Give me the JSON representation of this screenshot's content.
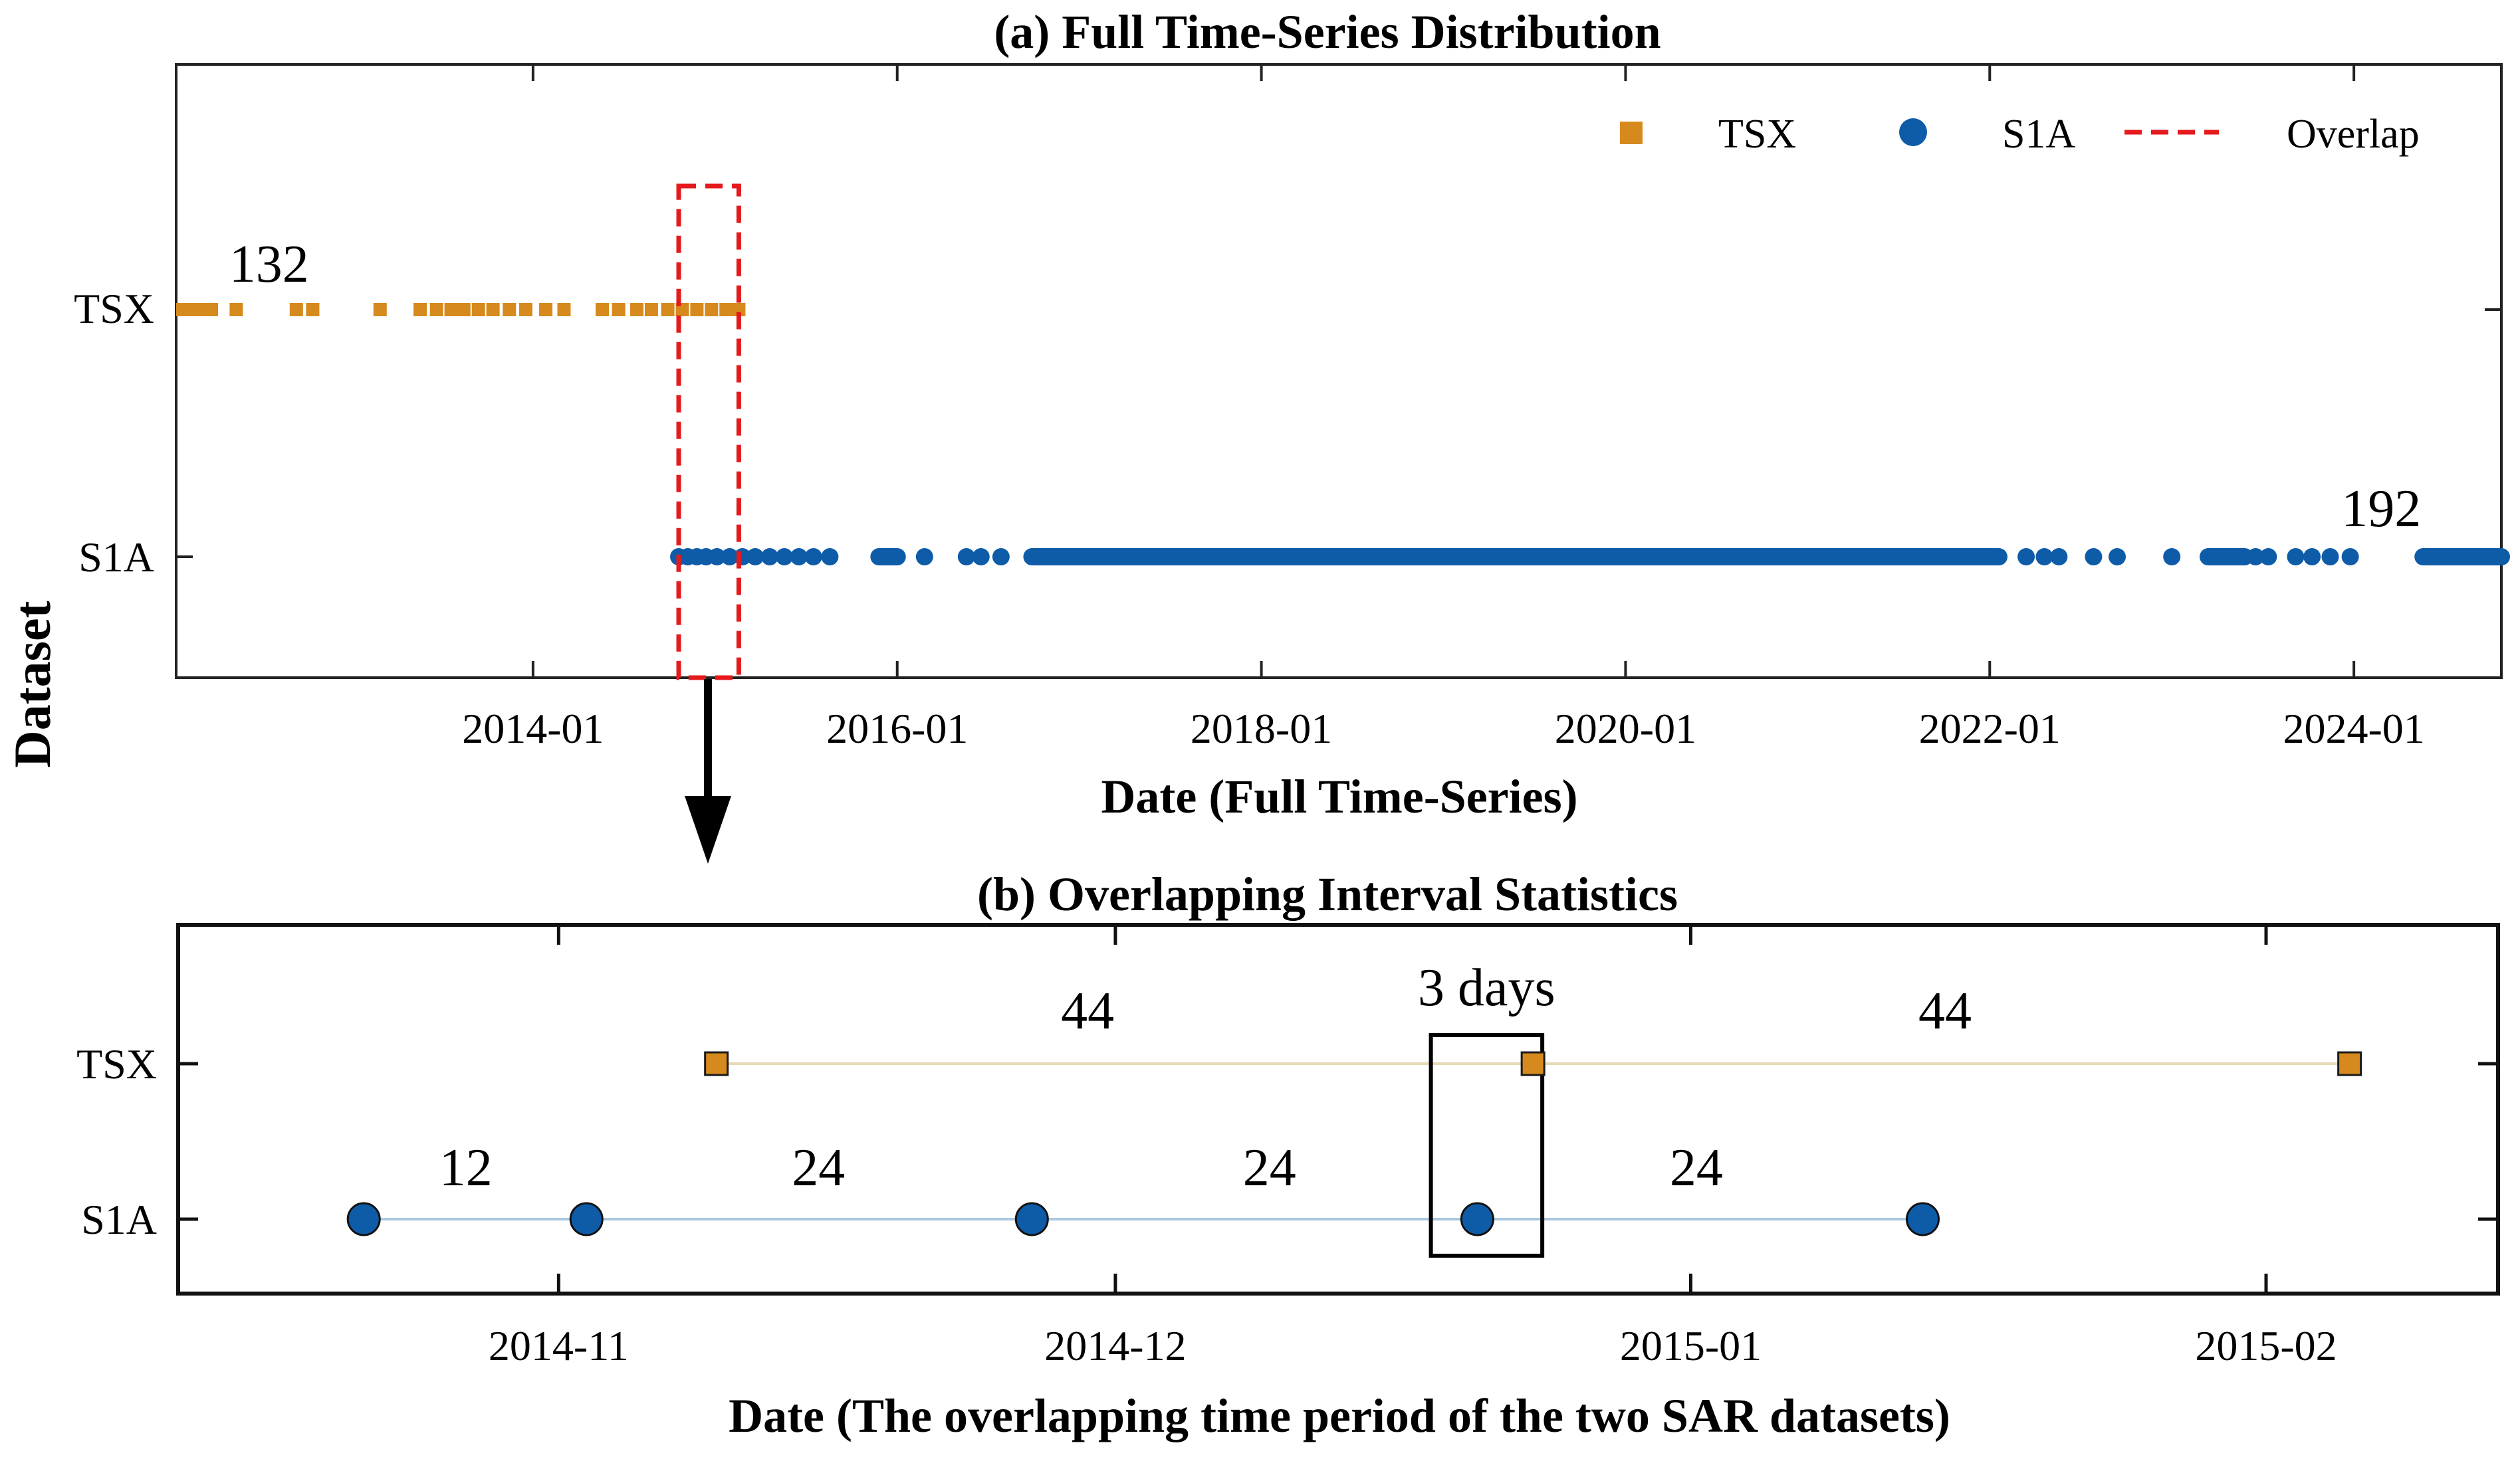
{
  "chart_data": [
    {
      "panel": "a",
      "type": "scatter",
      "title": "(a) Full Time-Series Distribution",
      "xlabel": "Date (Full Time-Series)",
      "ylabel": "Dataset",
      "categories": [
        "TSX",
        "S1A"
      ],
      "x_tick_labels": [
        "2014-01",
        "2016-01",
        "2018-01",
        "2020-01",
        "2022-01",
        "2024-01"
      ],
      "x_tick_values": [
        2014.0,
        2016.0,
        2018.0,
        2020.0,
        2022.0,
        2024.0
      ],
      "xlim": [
        2012.04,
        2024.81
      ],
      "legend": {
        "placement": "top-right",
        "entries": [
          {
            "label": "TSX",
            "marker": "square",
            "color": "#D68A1E"
          },
          {
            "label": "S1A",
            "marker": "circle",
            "color": "#0E5CA8"
          },
          {
            "label": "Overlap",
            "marker": "dashed-line",
            "color": "#E41A1C"
          }
        ]
      },
      "annotations": [
        {
          "text": "132",
          "series": "TSX",
          "x": 2012.55
        },
        {
          "text": "192",
          "series": "S1A",
          "x": 2024.15
        }
      ],
      "overlap_box": {
        "x_start": 2014.8,
        "x_end": 2015.13,
        "color": "#E41A1C"
      },
      "series": [
        {
          "name": "TSX",
          "color": "#D68A1E",
          "marker": "square",
          "segments": [
            [
              2012.04,
              2012.27
            ]
          ],
          "x": [
            2012.37,
            2012.7,
            2012.79,
            2013.16,
            2013.38,
            2013.47,
            2013.55,
            2013.62,
            2013.7,
            2013.78,
            2013.87,
            2013.96,
            2014.07,
            2014.17,
            2014.38,
            2014.47,
            2014.57,
            2014.65,
            2014.74,
            2014.82,
            2014.9,
            2014.98,
            2015.06,
            2015.13
          ]
        },
        {
          "name": "S1A",
          "color": "#0E5CA8",
          "marker": "circle",
          "segments": [
            [
              2015.9,
              2016.0
            ],
            [
              2016.74,
              2022.05
            ],
            [
              2023.2,
              2023.4
            ],
            [
              2024.38,
              2024.81
            ]
          ],
          "x": [
            2014.8,
            2014.85,
            2014.9,
            2014.95,
            2015.01,
            2015.08,
            2015.15,
            2015.22,
            2015.3,
            2015.38,
            2015.46,
            2015.54,
            2015.63,
            2016.15,
            2016.38,
            2016.46,
            2016.57,
            2022.2,
            2022.3,
            2022.38,
            2022.57,
            2022.7,
            2023.0,
            2023.46,
            2023.53,
            2023.68,
            2023.77,
            2023.87,
            2023.98
          ]
        }
      ]
    },
    {
      "panel": "b",
      "type": "scatter",
      "title": "(b) Overlapping Interval Statistics",
      "xlabel": "Date (The overlapping time period of the two SAR datasets)",
      "categories": [
        "TSX",
        "S1A"
      ],
      "x_tick_labels": [
        "2014-11",
        "2014-12",
        "2015-01",
        "2015-02"
      ],
      "x_tick_days": [
        0,
        30,
        61,
        92
      ],
      "xlim_days": [
        -20.5,
        104.5
      ],
      "series": [
        {
          "name": "TSX",
          "color": "#D68A1E",
          "marker": "square",
          "x_days": [
            8.5,
            52.5,
            96.5
          ]
        },
        {
          "name": "S1A",
          "color": "#0E5CA8",
          "marker": "circle",
          "x_days": [
            -10.5,
            1.5,
            25.5,
            49.5,
            73.5
          ]
        }
      ],
      "interval_labels": {
        "TSX": [
          {
            "text": "44",
            "x_days": 28.5
          },
          {
            "text": "44",
            "x_days": 74.7
          }
        ],
        "S1A": [
          {
            "text": "12",
            "x_days": -5
          },
          {
            "text": "24",
            "x_days": 14
          },
          {
            "text": "24",
            "x_days": 38.3
          },
          {
            "text": "24",
            "x_days": 61.3
          }
        ]
      },
      "highlight": {
        "text": "3 days",
        "x_start": 47,
        "x_end": 53
      }
    }
  ],
  "arrow": {
    "from": "overlap_box",
    "to": "panel_b"
  }
}
